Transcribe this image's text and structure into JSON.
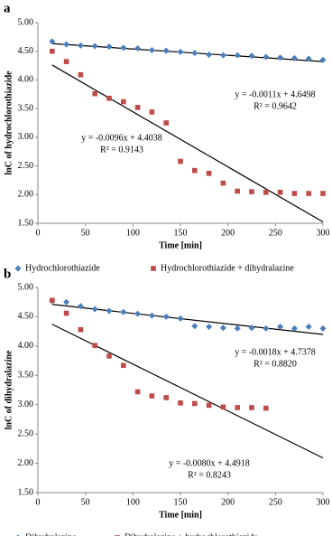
{
  "chart_data": [
    {
      "type": "scatter",
      "label": "a",
      "x_label": "Time [min]",
      "y_label": "lnC of hydrochlorothiazide",
      "xlim": [
        0,
        300
      ],
      "xticks": [
        0,
        50,
        100,
        150,
        200,
        250,
        300
      ],
      "ylim": [
        1.5,
        5.0
      ],
      "yticks": [
        {
          "value": 1.5,
          "label": "1.50"
        },
        {
          "value": 2.0,
          "label": "2.00"
        },
        {
          "value": 2.5,
          "label": "2.50"
        },
        {
          "value": 3.0,
          "label": "3.00"
        },
        {
          "value": 3.5,
          "label": "3.50"
        },
        {
          "value": 4.0,
          "label": "4.00"
        },
        {
          "value": 4.5,
          "label": "4.50"
        },
        {
          "value": 5.0,
          "label": "5.00"
        }
      ],
      "series": [
        {
          "name": "Hydrochlorothiazide",
          "color": "#4a7ebb",
          "marker": "diamond",
          "x": [
            15,
            30,
            45,
            60,
            75,
            90,
            105,
            120,
            135,
            150,
            165,
            180,
            195,
            210,
            225,
            240,
            255,
            270,
            285,
            300
          ],
          "values": [
            4.67,
            4.62,
            4.6,
            4.59,
            4.58,
            4.56,
            4.55,
            4.52,
            4.51,
            4.49,
            4.47,
            4.44,
            4.43,
            4.43,
            4.42,
            4.4,
            4.39,
            4.38,
            4.37,
            4.35
          ],
          "trendline": {
            "slope": -0.0011,
            "intercept": 4.6498,
            "equation": "y = -0.0011x + 4.6498",
            "r_squared": "R² = 0.9642"
          }
        },
        {
          "name": "Hydrochlorothiazide + dihydralazine",
          "color": "#be4b48",
          "marker": "square",
          "x": [
            15,
            30,
            45,
            60,
            75,
            90,
            105,
            120,
            135,
            150,
            165,
            180,
            195,
            210,
            225,
            240,
            255,
            270,
            285,
            300
          ],
          "values": [
            4.5,
            4.32,
            4.09,
            3.76,
            3.68,
            3.62,
            3.52,
            3.44,
            3.25,
            2.58,
            2.42,
            2.37,
            2.2,
            2.06,
            2.05,
            2.04,
            2.04,
            2.02,
            2.02,
            2.02
          ],
          "trendline": {
            "slope": -0.0096,
            "intercept": 4.4038,
            "equation": "y = -0.0096x + 4.4038",
            "r_squared": "R² = 0.9143"
          }
        }
      ]
    },
    {
      "type": "scatter",
      "label": "b",
      "x_label": "Time [min]",
      "y_label": "lnC of dihydralazine",
      "xlim": [
        0,
        300
      ],
      "xticks": [
        0,
        50,
        100,
        150,
        200,
        250,
        300
      ],
      "ylim": [
        1.5,
        5.0
      ],
      "yticks": [
        {
          "value": 1.5,
          "label": "1.50"
        },
        {
          "value": 2.0,
          "label": "2.00"
        },
        {
          "value": 2.5,
          "label": "2.50"
        },
        {
          "value": 3.0,
          "label": "3.00"
        },
        {
          "value": 3.5,
          "label": "3.50"
        },
        {
          "value": 4.0,
          "label": "4.00"
        },
        {
          "value": 4.5,
          "label": "4.50"
        },
        {
          "value": 5.0,
          "label": "5.00"
        }
      ],
      "series": [
        {
          "name": "Dihydralazine",
          "color": "#4a7ebb",
          "marker": "diamond",
          "x": [
            15,
            30,
            45,
            60,
            75,
            90,
            105,
            120,
            135,
            150,
            165,
            180,
            195,
            210,
            225,
            240,
            255,
            270,
            285,
            300
          ],
          "values": [
            4.77,
            4.75,
            4.68,
            4.63,
            4.6,
            4.58,
            4.55,
            4.52,
            4.5,
            4.47,
            4.34,
            4.33,
            4.31,
            4.3,
            4.31,
            4.3,
            4.33,
            4.3,
            4.33,
            4.3
          ],
          "trendline": {
            "slope": -0.0018,
            "intercept": 4.7378,
            "equation": "y = -0.0018x + 4.7378",
            "r_squared": "R² = 0.8820"
          }
        },
        {
          "name": "Dihydralazine + hydrochlorothiazide",
          "color": "#be4b48",
          "marker": "square",
          "x": [
            15,
            30,
            45,
            60,
            75,
            90,
            105,
            120,
            135,
            150,
            165,
            180,
            195,
            210,
            225,
            240
          ],
          "values": [
            4.78,
            4.56,
            4.28,
            4.01,
            3.83,
            3.67,
            3.22,
            3.15,
            3.12,
            3.03,
            3.02,
            2.99,
            2.96,
            2.95,
            2.95,
            2.94
          ],
          "trendline": {
            "slope": -0.008,
            "intercept": 4.4918,
            "equation": "y = -0.0080x + 4.4918",
            "r_squared": "R² = 0.8243"
          }
        }
      ]
    }
  ]
}
